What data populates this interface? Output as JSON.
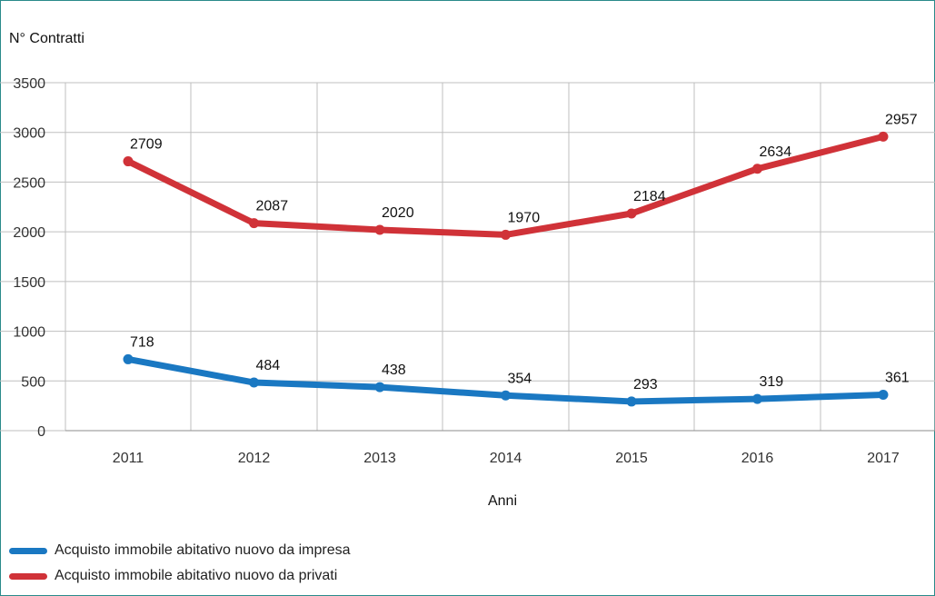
{
  "chart_data": {
    "type": "line",
    "ylabel": "N° Contratti",
    "xlabel": "Anni",
    "categories": [
      "2011",
      "2012",
      "2013",
      "2014",
      "2015",
      "2016",
      "2017"
    ],
    "ylim": [
      0,
      3500
    ],
    "yticks": [
      0,
      500,
      1000,
      1500,
      2000,
      2500,
      3000,
      3500
    ],
    "grid": true,
    "legend_position": "bottom-left",
    "series": [
      {
        "name": "Acquisto immobile abitativo nuovo da impresa",
        "color": "#1a78c2",
        "values": [
          718,
          484,
          438,
          354,
          293,
          319,
          361
        ]
      },
      {
        "name": "Acquisto immobile abitativo nuovo da privati",
        "color": "#d03238",
        "values": [
          2709,
          2087,
          2020,
          1970,
          2184,
          2634,
          2957
        ]
      }
    ]
  }
}
